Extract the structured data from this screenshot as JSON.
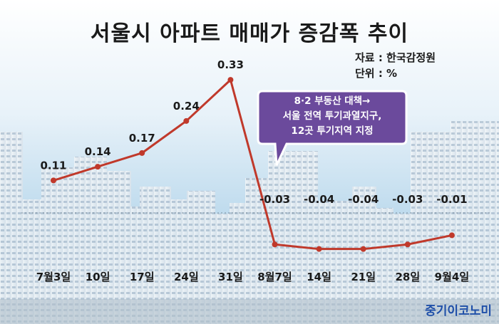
{
  "chart_data": {
    "type": "line",
    "title": "서울시 아파트 매매가 증감폭 추이",
    "source_label": "자료 : 한국감정원",
    "unit_label": "단위 : %",
    "categories": [
      "7월3일",
      "10일",
      "17일",
      "24일",
      "31일",
      "8월7일",
      "14일",
      "21일",
      "28일",
      "9월4일"
    ],
    "values": [
      0.11,
      0.14,
      0.17,
      0.24,
      0.33,
      -0.03,
      -0.04,
      -0.04,
      -0.03,
      -0.01
    ],
    "value_labels": [
      "0.11",
      "0.14",
      "0.17",
      "0.24",
      "0.33",
      "-0.03",
      "-0.04",
      "-0.04",
      "-0.03",
      "-0.01"
    ],
    "line_color": "#c0392b",
    "annotation": {
      "lines": [
        "8·2 부동산 대책→",
        "서울 전역 투기과열지구,",
        "12곳 투기지역 지정"
      ],
      "color": "#6b4a9c"
    }
  },
  "footer": {
    "brand": "중기이코노미"
  }
}
